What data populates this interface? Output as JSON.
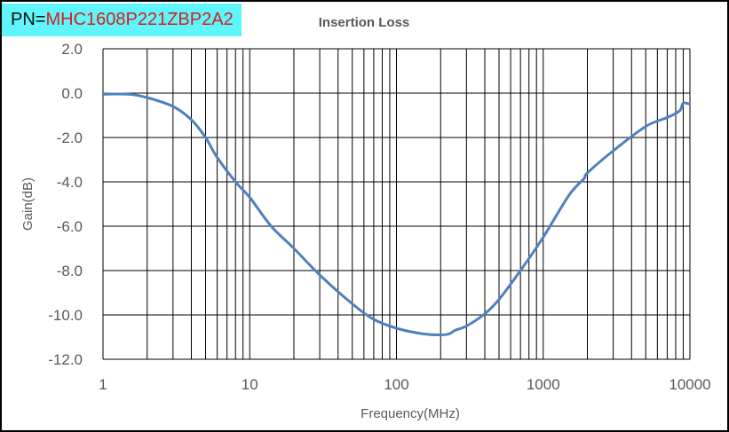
{
  "header": {
    "pn_label": "PN=",
    "pn_value": "MHC1608P221ZBP2A2"
  },
  "chart_data": {
    "type": "line",
    "title": "Insertion Loss",
    "xlabel": "Frequency(MHz)",
    "ylabel": "Gain(dB)",
    "xscale": "log",
    "xlim": [
      1,
      10000
    ],
    "ylim": [
      -12,
      2
    ],
    "grid": true,
    "x_ticks": [
      "1",
      "10",
      "100",
      "1000",
      "10000"
    ],
    "y_ticks": [
      "2.0",
      "0.0",
      "-2.0",
      "-4.0",
      "-6.0",
      "-8.0",
      "-10.0",
      "-12.0"
    ],
    "line_color": "#4f81bd",
    "series": [
      {
        "name": "Insertion Loss",
        "x": [
          1,
          1.5,
          2,
          3,
          4,
          5,
          6,
          8,
          10,
          14,
          20,
          30,
          50,
          70,
          100,
          150,
          200,
          230,
          250,
          300,
          400,
          500,
          700,
          1000,
          1500,
          1900,
          2000,
          3000,
          5000,
          7000,
          8500,
          9000,
          10000
        ],
        "y": [
          -0.05,
          -0.05,
          -0.2,
          -0.6,
          -1.2,
          -2.0,
          -2.9,
          -4.0,
          -4.7,
          -6.0,
          -7.0,
          -8.2,
          -9.5,
          -10.2,
          -10.6,
          -10.85,
          -10.9,
          -10.85,
          -10.7,
          -10.5,
          -9.95,
          -9.3,
          -8.0,
          -6.5,
          -4.6,
          -3.85,
          -3.6,
          -2.6,
          -1.5,
          -1.1,
          -0.8,
          -0.45,
          -0.5
        ]
      }
    ]
  }
}
